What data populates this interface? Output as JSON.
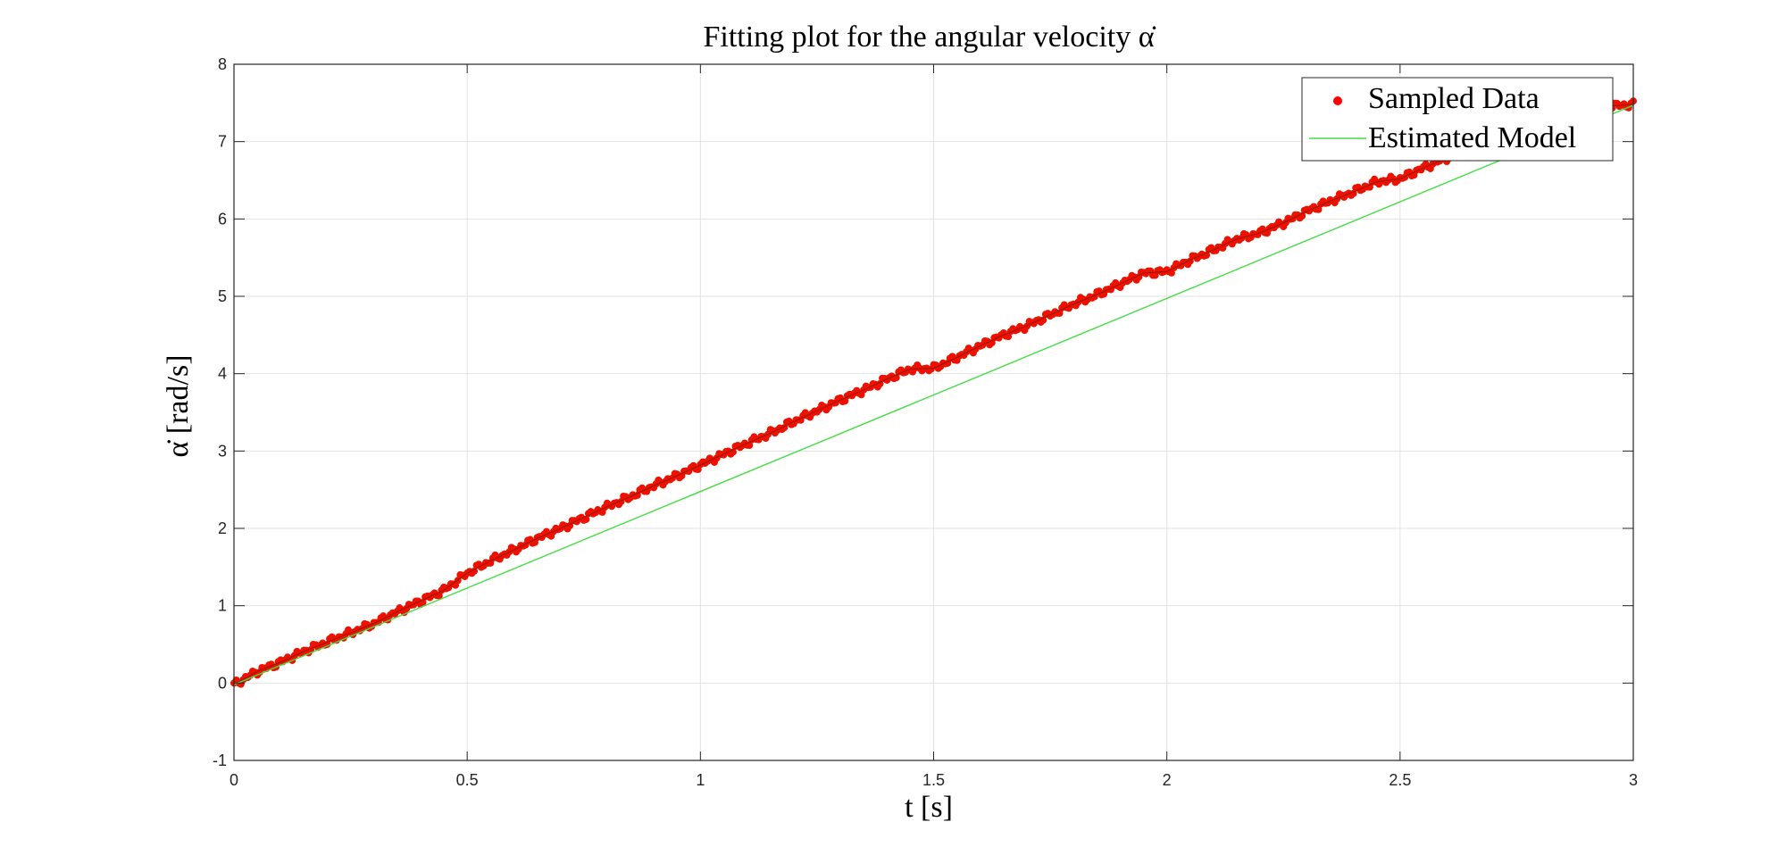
{
  "chart_data": {
    "type": "scatter",
    "title": "Fitting plot for the angular velocity α̇",
    "xlabel": "t [s]",
    "ylabel": "α̇ [rad/s]",
    "xlim": [
      0,
      3
    ],
    "ylim": [
      -1,
      8
    ],
    "grid": true,
    "legend_position": "top-right",
    "x_ticks": [
      "0",
      "0.5",
      "1",
      "1.5",
      "2",
      "2.5",
      "3"
    ],
    "y_ticks": [
      "-1",
      "0",
      "1",
      "2",
      "3",
      "4",
      "5",
      "6",
      "7",
      "8"
    ],
    "series": [
      {
        "name": "Sampled Data",
        "marker": "dot",
        "color": "#ff0000",
        "x": [
          0.0,
          0.05,
          0.1,
          0.15,
          0.2,
          0.25,
          0.3,
          0.35,
          0.4,
          0.45,
          0.5,
          0.55,
          0.6,
          0.65,
          0.7,
          0.75,
          0.8,
          0.85,
          0.9,
          0.95,
          1.0,
          1.05,
          1.1,
          1.15,
          1.2,
          1.25,
          1.3,
          1.35,
          1.4,
          1.45,
          1.5,
          1.55,
          1.6,
          1.65,
          1.7,
          1.75,
          1.8,
          1.85,
          1.9,
          1.95,
          2.0,
          2.05,
          2.1,
          2.15,
          2.2,
          2.25,
          2.3,
          2.35,
          2.4,
          2.45,
          2.5,
          2.55,
          2.6,
          2.65,
          2.7,
          2.75,
          2.8,
          2.85,
          2.9,
          2.95,
          3.0
        ],
        "y": [
          -0.02,
          0.15,
          0.27,
          0.41,
          0.53,
          0.65,
          0.77,
          0.92,
          1.06,
          1.2,
          1.42,
          1.58,
          1.72,
          1.87,
          2.0,
          2.14,
          2.28,
          2.41,
          2.55,
          2.68,
          2.82,
          2.96,
          3.1,
          3.23,
          3.38,
          3.52,
          3.66,
          3.79,
          3.93,
          4.06,
          4.07,
          4.21,
          4.36,
          4.5,
          4.62,
          4.76,
          4.9,
          5.02,
          5.16,
          5.3,
          5.32,
          5.47,
          5.6,
          5.74,
          5.82,
          5.95,
          6.1,
          6.23,
          6.35,
          6.48,
          6.52,
          6.66,
          6.79,
          6.93,
          7.05,
          7.18,
          7.3,
          7.35,
          7.42,
          7.46,
          7.48
        ]
      },
      {
        "name": "Estimated Model",
        "style": "line",
        "color": "#44dd44",
        "x": [
          0,
          3
        ],
        "y": [
          -0.02,
          7.47
        ]
      }
    ]
  }
}
